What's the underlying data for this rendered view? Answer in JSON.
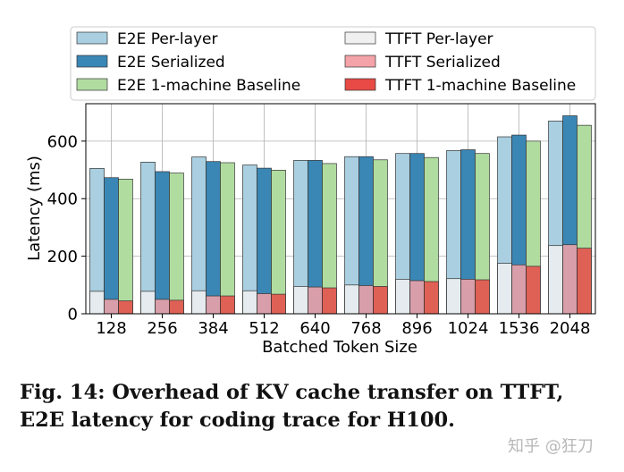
{
  "chart_data": {
    "type": "bar",
    "xlabel": "Batched Token Size",
    "ylabel": "Latency (ms)",
    "ylim": [
      0,
      730
    ],
    "yticks": [
      0,
      200,
      400,
      600
    ],
    "grid": true,
    "legend_position": "top",
    "categories": [
      "128",
      "256",
      "384",
      "512",
      "640",
      "768",
      "896",
      "1024",
      "1536",
      "2048"
    ],
    "series": [
      {
        "name": "E2E Per-layer",
        "color": "#a9cfe0",
        "values": [
          505,
          527,
          545,
          517,
          533,
          546,
          557,
          567,
          615,
          670
        ]
      },
      {
        "name": "E2E Serialized",
        "color": "#3a86b4",
        "values": [
          473,
          494,
          529,
          506,
          533,
          546,
          557,
          570,
          621,
          688
        ]
      },
      {
        "name": "E2E 1-machine Baseline",
        "color": "#b0dca0",
        "values": [
          468,
          489,
          525,
          499,
          522,
          535,
          543,
          557,
          600,
          655
        ]
      },
      {
        "name": "TTFT Per-layer",
        "color": "#f0f0f0",
        "values": [
          78,
          78,
          80,
          80,
          95,
          100,
          120,
          122,
          175,
          237
        ]
      },
      {
        "name": "TTFT Serialized",
        "color": "#f4a3a8",
        "values": [
          50,
          50,
          62,
          70,
          93,
          98,
          115,
          120,
          170,
          240
        ]
      },
      {
        "name": "TTFT 1-machine Baseline",
        "color": "#e84a46",
        "values": [
          45,
          47,
          62,
          68,
          90,
          95,
          112,
          118,
          165,
          228
        ]
      }
    ]
  },
  "caption": "Fig. 14: Overhead of KV cache transfer on TTFT, E2E latency for coding trace for H100.",
  "watermark": "知乎 @狂刀"
}
